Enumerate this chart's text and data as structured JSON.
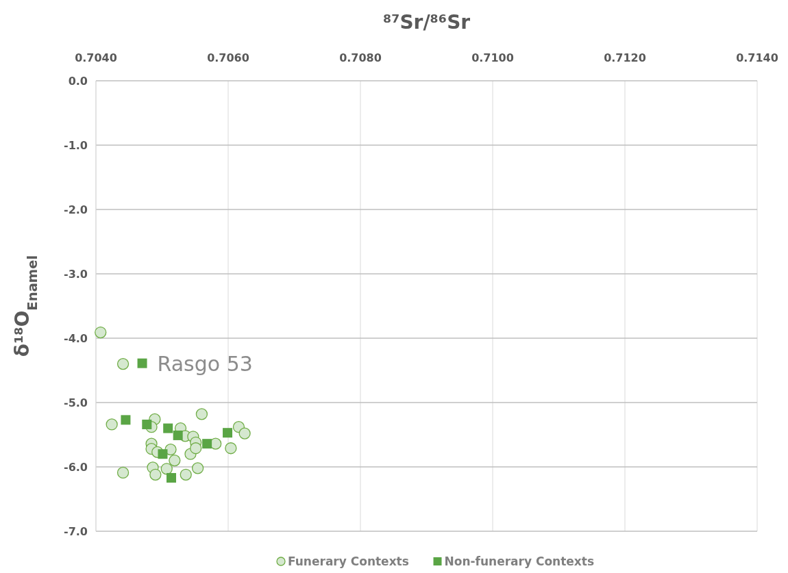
{
  "chart_data": {
    "type": "scatter",
    "xlabel": "⁸⁷Sr/⁸⁶Sr",
    "ylabel": "δ¹⁸O$_{Enamel}$",
    "xlim": [
      0.704,
      0.714
    ],
    "xticks": [
      {
        "value": 0.704,
        "label": "0.7040"
      },
      {
        "value": 0.706,
        "label": "0.7060"
      },
      {
        "value": 0.708,
        "label": "0.7080"
      },
      {
        "value": 0.71,
        "label": "0.7100"
      },
      {
        "value": 0.712,
        "label": "0.7120"
      },
      {
        "value": 0.714,
        "label": "0.7140"
      }
    ],
    "ylim": [
      -7,
      0
    ],
    "yticks": [
      {
        "value": -7,
        "label": "-7.0"
      },
      {
        "value": -6,
        "label": "-6.0"
      },
      {
        "value": -5,
        "label": "-5.0"
      },
      {
        "value": -4,
        "label": "-4.0"
      },
      {
        "value": -3,
        "label": "-3.0"
      },
      {
        "value": -2,
        "label": "-2.0"
      },
      {
        "value": -1,
        "label": "-1.0"
      },
      {
        "value": 0,
        "label": "0.0"
      }
    ],
    "grid": true,
    "legend": "bottom",
    "series": [
      {
        "name": "Funerary Contexts",
        "color": "#d5e8cf",
        "marker": "circle",
        "x": [
          0.70407,
          0.70441,
          0.70424,
          0.70441,
          0.70489,
          0.70484,
          0.70484,
          0.70484,
          0.70486,
          0.7049,
          0.70493,
          0.70513,
          0.70507,
          0.70519,
          0.70528,
          0.70535,
          0.70536,
          0.70543,
          0.70547,
          0.70551,
          0.70551,
          0.70554,
          0.7056,
          0.70581,
          0.70604,
          0.70616,
          0.70625
        ],
        "values": [
          -3.91,
          -4.4,
          -5.34,
          -6.09,
          -5.26,
          -5.38,
          -5.64,
          -5.72,
          -6.01,
          -6.12,
          -5.77,
          -5.73,
          -6.03,
          -5.9,
          -5.4,
          -5.52,
          -6.12,
          -5.8,
          -5.53,
          -5.62,
          -5.71,
          -6.02,
          -5.18,
          -5.64,
          -5.71,
          -5.38,
          -5.48
        ]
      },
      {
        "name": "Non-funerary Contexts",
        "color": "#5aa545",
        "marker": "square",
        "x": [
          0.70445,
          0.70477,
          0.70509,
          0.70524,
          0.70501,
          0.70514,
          0.70568,
          0.70599,
          0.7047
        ],
        "values": [
          -5.27,
          -5.34,
          -5.4,
          -5.51,
          -5.8,
          -6.17,
          -5.64,
          -5.47,
          -4.39
        ]
      }
    ],
    "annotations": [
      {
        "text": "Rasgo 53",
        "x": 0.7047,
        "y": -4.39
      }
    ]
  }
}
